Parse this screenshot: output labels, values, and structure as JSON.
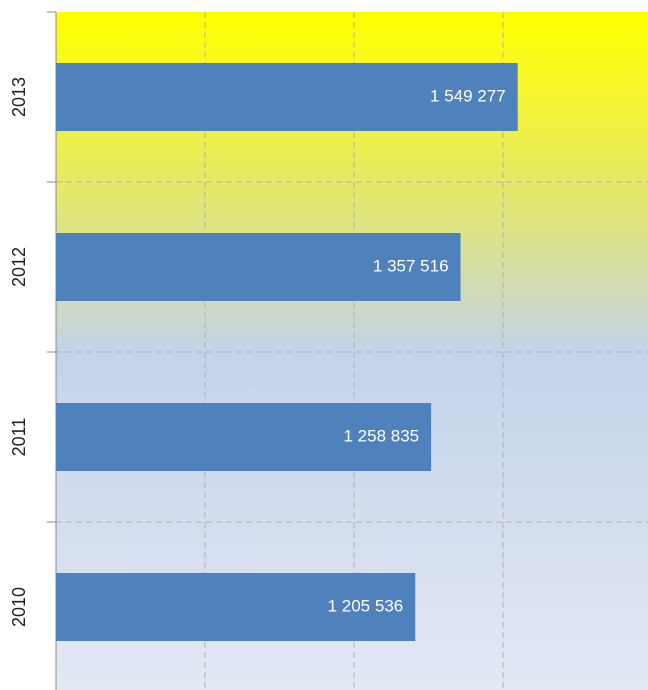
{
  "chart_data": {
    "type": "barh",
    "categories": [
      "2010",
      "2011",
      "2012",
      "2013"
    ],
    "values": [
      1205536,
      1258835,
      1357516,
      1549277
    ],
    "value_labels": [
      "1 205 536",
      "1 258 835",
      "1 357 516",
      "1 549 277"
    ],
    "color": "#4f81bd",
    "xlim": [
      0,
      2000000
    ],
    "xticks": [
      0,
      500000,
      1000000,
      1500000
    ],
    "grid": true
  }
}
